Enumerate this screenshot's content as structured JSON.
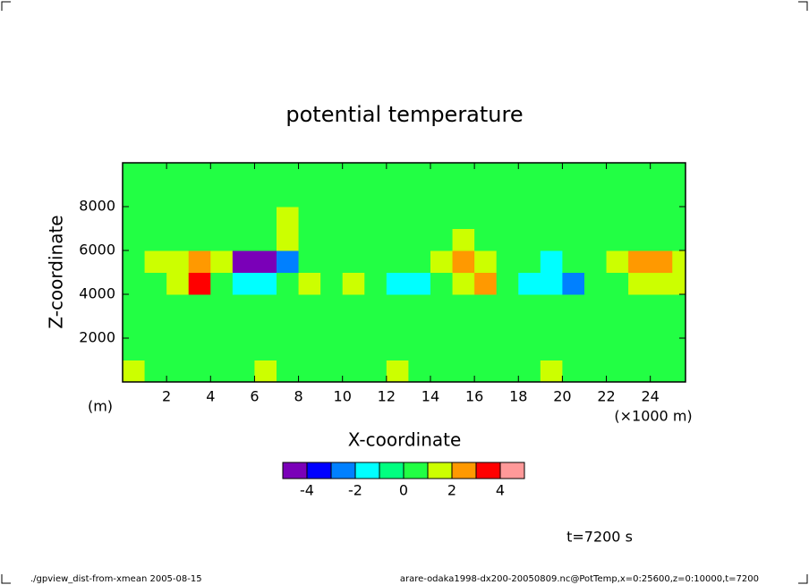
{
  "chart_data": {
    "type": "contour",
    "title": "potential temperature",
    "x_label": "X-coordinate",
    "y_label": "Z-coordinate",
    "x_unit": "(×1000 m)",
    "y_unit": "(m)",
    "time_label": "t=7200 s",
    "footer_left": "./gpview_dist-from-xmean  2005-08-15",
    "footer_right": "arare-odaka1998-dx200-20050809.nc@PotTemp,x=0:25600,z=0:10000,t=7200",
    "xlim": [
      0,
      25.6
    ],
    "ylim": [
      0,
      10000
    ],
    "xticks": [
      2,
      4,
      6,
      8,
      10,
      12,
      14,
      16,
      18,
      20,
      22,
      24
    ],
    "yticks": [
      2000,
      4000,
      6000,
      8000
    ],
    "x": [
      0.5,
      1.5,
      2.5,
      3.5,
      4.5,
      5.5,
      6.5,
      7.5,
      8.5,
      9.5,
      10.5,
      11.5,
      12.5,
      13.5,
      14.5,
      15.5,
      16.5,
      17.5,
      18.5,
      19.5,
      20.5,
      21.5,
      22.5,
      23.5,
      24.5,
      25.5
    ],
    "y": [
      500,
      1500,
      2500,
      3500,
      4500,
      5500,
      6500,
      7500,
      8500,
      9500
    ],
    "z": [
      [
        1.5,
        0.5,
        0.5,
        0.5,
        0.5,
        0.5,
        1.5,
        0.5,
        0.5,
        0.5,
        0.5,
        0.5,
        1.5,
        0.5,
        0.5,
        0.5,
        0.5,
        0.5,
        0.5,
        1.5,
        0.5,
        0.5,
        0.5,
        0.5,
        0.5,
        0.5
      ],
      [
        0.5,
        0.5,
        0.5,
        0.5,
        0.5,
        0.5,
        0.5,
        0.5,
        0.5,
        0.5,
        0.5,
        0.5,
        0.5,
        0.5,
        0.5,
        0.5,
        0.5,
        0.5,
        0.5,
        0.5,
        0.5,
        0.5,
        0.5,
        0.5,
        0.5,
        0.5
      ],
      [
        0.5,
        0.5,
        0.5,
        0.5,
        0.5,
        0.5,
        0.5,
        0.5,
        0.5,
        0.5,
        0.5,
        0.5,
        0.5,
        0.5,
        0.5,
        0.5,
        0.5,
        0.5,
        0.5,
        0.5,
        0.5,
        0.5,
        0.5,
        0.5,
        0.5,
        0.5
      ],
      [
        0.5,
        0.5,
        0.5,
        0.5,
        0.5,
        0.5,
        0.5,
        0.5,
        0.5,
        0.5,
        0.5,
        0.5,
        0.5,
        0.5,
        0.5,
        0.5,
        0.5,
        0.5,
        0.5,
        0.5,
        0.5,
        0.5,
        0.5,
        0.5,
        0.5,
        0.5
      ],
      [
        0.5,
        0.5,
        1.5,
        3.5,
        0.5,
        -1.5,
        -1.5,
        0.5,
        1.5,
        0.5,
        1.5,
        0.5,
        -1.5,
        -1.5,
        0.5,
        1.5,
        2.5,
        0.5,
        -1.5,
        -1.5,
        -2.5,
        0.5,
        0.5,
        1.5,
        1.5,
        1.5
      ],
      [
        0.5,
        1.5,
        1.5,
        2.5,
        1.5,
        -4.5,
        -4.5,
        -2.5,
        0.5,
        0.5,
        0.5,
        0.5,
        0.5,
        0.5,
        1.5,
        2.5,
        1.5,
        0.5,
        0.5,
        -1.5,
        0.5,
        0.5,
        1.5,
        2.5,
        2.5,
        1.5
      ],
      [
        0.5,
        0.5,
        0.5,
        0.5,
        0.5,
        0.5,
        0.5,
        1.5,
        0.5,
        0.5,
        0.5,
        0.5,
        0.5,
        0.5,
        0.5,
        1.5,
        0.5,
        0.5,
        0.5,
        0.5,
        0.5,
        0.5,
        0.5,
        0.5,
        0.5,
        0.5
      ],
      [
        0.5,
        0.5,
        0.5,
        0.5,
        0.5,
        0.5,
        0.5,
        1.5,
        0.5,
        0.5,
        0.5,
        0.5,
        0.5,
        0.5,
        0.5,
        0.5,
        0.5,
        0.5,
        0.5,
        0.5,
        0.5,
        0.5,
        0.5,
        0.5,
        0.5,
        0.5
      ],
      [
        0.5,
        0.5,
        0.5,
        0.5,
        0.5,
        0.5,
        0.5,
        0.5,
        0.5,
        0.5,
        0.5,
        0.5,
        0.5,
        0.5,
        0.5,
        0.5,
        0.5,
        0.5,
        0.5,
        0.5,
        0.5,
        0.5,
        0.5,
        0.5,
        0.5,
        0.5
      ],
      [
        0.5,
        0.5,
        0.5,
        0.5,
        0.5,
        0.5,
        0.5,
        0.5,
        0.5,
        0.5,
        0.5,
        0.5,
        0.5,
        0.5,
        0.5,
        0.5,
        0.5,
        0.5,
        0.5,
        0.5,
        0.5,
        0.5,
        0.5,
        0.5,
        0.5,
        0.5
      ]
    ],
    "levels": [
      -5,
      -4,
      -3,
      -2,
      -1,
      0,
      1,
      2,
      3,
      4,
      5
    ],
    "colors": [
      "#7a00b8",
      "#0000ff",
      "#0080ff",
      "#00ffff",
      "#00ff80",
      "#22ff44",
      "#ccff00",
      "#ff9900",
      "#ff0000",
      "#ff9999"
    ],
    "colorbar_ticks": [
      -4,
      -2,
      0,
      2,
      4
    ]
  }
}
